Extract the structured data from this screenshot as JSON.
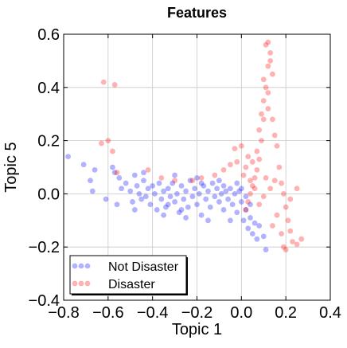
{
  "chart_data": {
    "type": "scatter",
    "title": "Features",
    "xlabel": "Topic 1",
    "ylabel": "Topic 5",
    "xlim": [
      -0.8,
      0.4
    ],
    "ylim": [
      -0.4,
      0.6
    ],
    "xticks": [
      -0.8,
      -0.6,
      -0.4,
      -0.2,
      0.0,
      0.2,
      0.4
    ],
    "xtick_labels": [
      "−0.8",
      "−0.6",
      "−0.4",
      "−0.2",
      "0.0",
      "0.2",
      "0.4"
    ],
    "yticks": [
      -0.4,
      -0.2,
      0.0,
      0.2,
      0.4,
      0.6
    ],
    "ytick_labels": [
      "−0.4",
      "−0.2",
      "0.0",
      "0.2",
      "0.4",
      "0.6"
    ],
    "grid": true,
    "legend_position": "bottom-left",
    "series": [
      {
        "name": "Not Disaster",
        "color": "#0000ff",
        "points": [
          [
            -0.78,
            0.14
          ],
          [
            -0.71,
            0.11
          ],
          [
            -0.68,
            0.05
          ],
          [
            -0.67,
            0.01
          ],
          [
            -0.66,
            0.09
          ],
          [
            -0.58,
            0.1
          ],
          [
            -0.57,
            0.08
          ],
          [
            -0.55,
            0.06
          ],
          [
            -0.54,
            0.02
          ],
          [
            -0.52,
            0.04
          ],
          [
            -0.5,
            0.01
          ],
          [
            -0.49,
            -0.03
          ],
          [
            -0.48,
            0.07
          ],
          [
            -0.47,
            0.03
          ],
          [
            -0.46,
            0.0
          ],
          [
            -0.45,
            -0.02
          ],
          [
            -0.44,
            0.05
          ],
          [
            -0.43,
            -0.01
          ],
          [
            -0.42,
            0.02
          ],
          [
            -0.41,
            -0.04
          ],
          [
            -0.4,
            0.03
          ],
          [
            -0.39,
            0.0
          ],
          [
            -0.38,
            -0.06
          ],
          [
            -0.37,
            0.04
          ],
          [
            -0.36,
            -0.02
          ],
          [
            -0.35,
            0.01
          ],
          [
            -0.34,
            -0.05
          ],
          [
            -0.33,
            0.02
          ],
          [
            -0.32,
            -0.01
          ],
          [
            -0.31,
            0.04
          ],
          [
            -0.3,
            -0.03
          ],
          [
            -0.29,
            0.0
          ],
          [
            -0.28,
            -0.07
          ],
          [
            -0.27,
            0.03
          ],
          [
            -0.26,
            -0.02
          ],
          [
            -0.25,
            0.01
          ],
          [
            -0.24,
            -0.05
          ],
          [
            -0.23,
            0.05
          ],
          [
            -0.22,
            -0.01
          ],
          [
            -0.21,
            0.02
          ],
          [
            -0.2,
            -0.04
          ],
          [
            -0.19,
            0.0
          ],
          [
            -0.18,
            -0.08
          ],
          [
            -0.17,
            0.03
          ],
          [
            -0.16,
            -0.02
          ],
          [
            -0.15,
            0.01
          ],
          [
            -0.14,
            -0.05
          ],
          [
            -0.13,
            0.04
          ],
          [
            -0.12,
            -0.01
          ],
          [
            -0.11,
            0.02
          ],
          [
            -0.1,
            -0.03
          ],
          [
            -0.09,
            0.0
          ],
          [
            -0.08,
            -0.06
          ],
          [
            -0.07,
            0.01
          ],
          [
            -0.06,
            -0.02
          ],
          [
            -0.05,
            0.02
          ],
          [
            -0.04,
            -0.04
          ],
          [
            -0.03,
            0.0
          ],
          [
            -0.02,
            -0.07
          ],
          [
            -0.01,
            0.01
          ],
          [
            0.0,
            -0.03
          ],
          [
            0.01,
            -0.1
          ],
          [
            0.02,
            -0.06
          ],
          [
            0.03,
            -0.13
          ],
          [
            0.04,
            -0.09
          ],
          [
            0.05,
            -0.15
          ],
          [
            0.06,
            -0.11
          ],
          [
            0.07,
            -0.17
          ],
          [
            0.08,
            -0.12
          ],
          [
            0.1,
            -0.16
          ],
          [
            0.11,
            -0.21
          ],
          [
            -0.61,
            -0.02
          ],
          [
            -0.44,
            0.08
          ],
          [
            -0.35,
            -0.08
          ],
          [
            -0.25,
            -0.09
          ],
          [
            -0.15,
            -0.1
          ],
          [
            -0.05,
            -0.1
          ],
          [
            -0.3,
            0.07
          ],
          [
            -0.2,
            0.06
          ],
          [
            -0.1,
            0.05
          ],
          [
            -0.56,
            -0.04
          ],
          [
            -0.48,
            -0.06
          ],
          [
            -0.02,
            0.04
          ],
          [
            0.0,
            0.02
          ],
          [
            0.02,
            -0.01
          ],
          [
            -0.33,
            -0.04
          ],
          [
            -0.27,
            -0.06
          ],
          [
            -0.18,
            0.04
          ],
          [
            -0.08,
            0.03
          ],
          [
            0.04,
            -0.04
          ]
        ]
      },
      {
        "name": "Disaster",
        "color": "#ff0000",
        "points": [
          [
            -0.62,
            0.42
          ],
          [
            -0.57,
            0.41
          ],
          [
            -0.63,
            0.19
          ],
          [
            -0.6,
            0.2
          ],
          [
            -0.58,
            0.16
          ],
          [
            -0.56,
            0.08
          ],
          [
            -0.42,
            0.09
          ],
          [
            -0.36,
            0.06
          ],
          [
            -0.3,
            0.05
          ],
          [
            -0.22,
            0.05
          ],
          [
            -0.18,
            0.06
          ],
          [
            -0.12,
            0.07
          ],
          [
            -0.08,
            0.09
          ],
          [
            -0.05,
            0.11
          ],
          [
            -0.03,
            0.17
          ],
          [
            -0.02,
            0.12
          ],
          [
            0.0,
            0.18
          ],
          [
            0.01,
            0.07
          ],
          [
            0.02,
            0.1
          ],
          [
            0.03,
            0.14
          ],
          [
            0.04,
            0.05
          ],
          [
            0.05,
            0.12
          ],
          [
            0.06,
            0.02
          ],
          [
            0.07,
            0.16
          ],
          [
            0.08,
            0.24
          ],
          [
            0.09,
            0.3
          ],
          [
            0.1,
            0.35
          ],
          [
            0.11,
            0.4
          ],
          [
            0.12,
            0.48
          ],
          [
            0.13,
            0.53
          ],
          [
            0.11,
            0.56
          ],
          [
            0.12,
            0.57
          ],
          [
            0.13,
            0.5
          ],
          [
            0.14,
            0.45
          ],
          [
            0.1,
            0.43
          ],
          [
            0.12,
            0.32
          ],
          [
            0.14,
            0.28
          ],
          [
            0.15,
            0.22
          ],
          [
            0.16,
            0.18
          ],
          [
            0.17,
            0.1
          ],
          [
            0.18,
            0.04
          ],
          [
            0.19,
            0.0
          ],
          [
            0.2,
            -0.05
          ],
          [
            0.21,
            -0.1
          ],
          [
            0.22,
            -0.14
          ],
          [
            0.23,
            -0.18
          ],
          [
            0.2,
            -0.21
          ],
          [
            0.19,
            -0.2
          ],
          [
            0.25,
            -0.19
          ],
          [
            0.27,
            -0.17
          ],
          [
            0.25,
            0.02
          ],
          [
            0.22,
            -0.02
          ],
          [
            0.16,
            -0.08
          ],
          [
            0.14,
            -0.12
          ],
          [
            0.18,
            -0.15
          ],
          [
            0.09,
            0.2
          ],
          [
            0.08,
            0.13
          ],
          [
            0.07,
            0.09
          ],
          [
            0.06,
            0.06
          ],
          [
            0.05,
            0.03
          ],
          [
            0.04,
            0.0
          ],
          [
            0.03,
            -0.03
          ],
          [
            0.02,
            -0.06
          ],
          [
            0.08,
            -0.04
          ],
          [
            0.1,
            -0.01
          ],
          [
            0.11,
            0.06
          ],
          [
            0.13,
            0.02
          ],
          [
            0.15,
            0.05
          ],
          [
            0.1,
            0.28
          ],
          [
            0.12,
            0.38
          ]
        ]
      }
    ]
  }
}
